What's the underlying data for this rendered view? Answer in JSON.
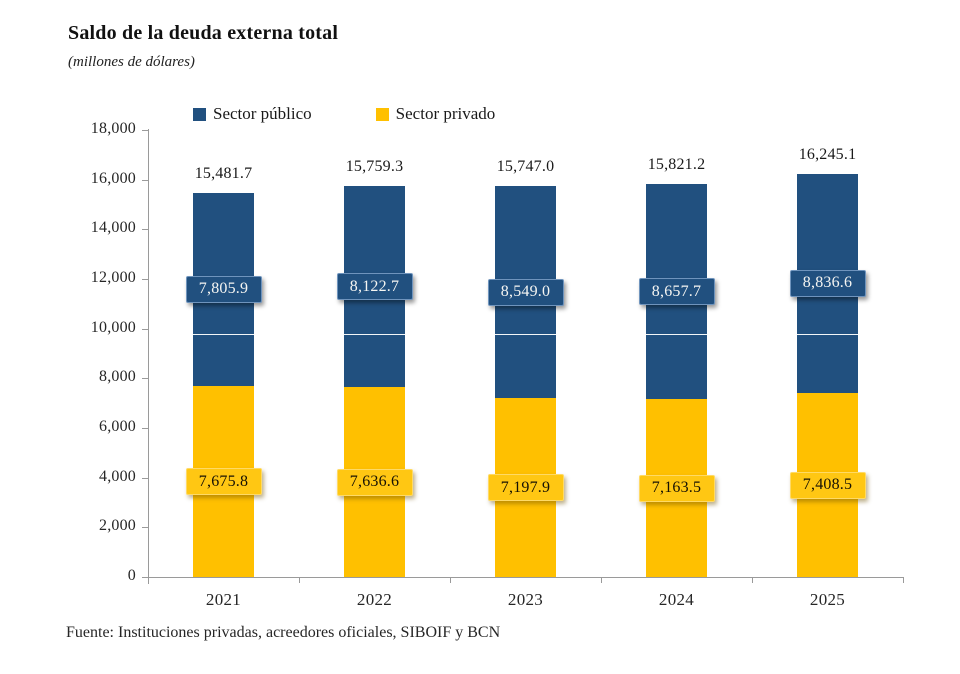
{
  "page": {
    "title": "Saldo de la deuda externa total",
    "subtitle": "(millones de dólares)",
    "source": "Fuente: Instituciones privadas, acreedores oficiales, SIBOIF y BCN"
  },
  "legend": {
    "items": [
      {
        "label": "Sector público",
        "color": "#21507F"
      },
      {
        "label": "Sector privado",
        "color": "#FFC000"
      }
    ]
  },
  "colors": {
    "public_bar": "#21507F",
    "private_bar": "#FFC000",
    "public_label_box": "#21507F",
    "private_label_box": "#FFC713",
    "axis_line": "#9A9A9A",
    "text": "#1F1F1F"
  },
  "chart_data": {
    "type": "bar",
    "stacked": true,
    "title": "Saldo de la deuda externa total",
    "units": "millones de dólares",
    "categories": [
      "2021",
      "2022",
      "2023",
      "2024",
      "2025"
    ],
    "series": [
      {
        "name": "Sector privado",
        "color": "#FFC000",
        "values": [
          7675.8,
          7636.6,
          7197.9,
          7163.5,
          7408.5
        ],
        "value_labels": [
          "7,675.8",
          "7,636.6",
          "7,197.9",
          "7,163.5",
          "7,408.5"
        ]
      },
      {
        "name": "Sector público",
        "color": "#21507F",
        "values": [
          7805.9,
          8122.7,
          8549.0,
          8657.7,
          8836.6
        ],
        "value_labels": [
          "7,805.9",
          "8,122.7",
          "8,549.0",
          "8,657.7",
          "8,836.6"
        ]
      }
    ],
    "totals": {
      "values": [
        15481.7,
        15759.3,
        15747.0,
        15821.2,
        16245.1
      ],
      "labels": [
        "15,481.7",
        "15,759.3",
        "15,747.0",
        "15,821.2",
        "16,245.1"
      ]
    },
    "y_axis": {
      "min": 0,
      "max": 18000,
      "step": 2000,
      "tick_labels": [
        "0",
        "2,000",
        "4,000",
        "6,000",
        "8,000",
        "10,000",
        "12,000",
        "14,000",
        "16,000",
        "18,000"
      ]
    },
    "legend_position": "top",
    "grid": false,
    "overlay_line_value": 9800
  }
}
